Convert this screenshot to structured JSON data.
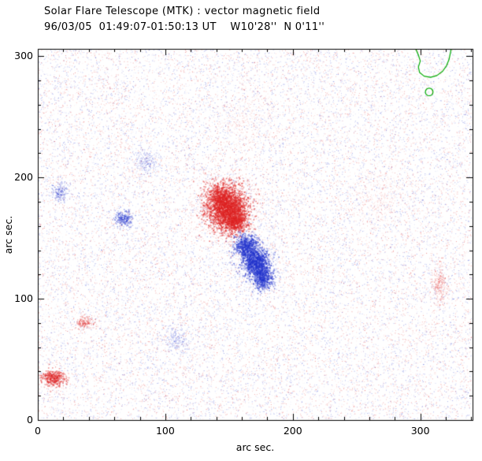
{
  "chart_data": {
    "type": "scatter",
    "title": "Solar Flare Telescope (MTK) : vector magnetic field",
    "subtitle": "96/03/05  01:49:07-01:50:13 UT    W10'28''  N 0'11''",
    "xlabel": "arc sec.",
    "ylabel": "arc sec.",
    "xlim": [
      0,
      341
    ],
    "ylim": [
      0,
      306
    ],
    "xticks": [
      0,
      100,
      200,
      300
    ],
    "yticks": [
      0,
      100,
      200,
      300
    ],
    "minor_tick_interval": 20,
    "grid": false,
    "legend": null,
    "colors": {
      "positive": "#dd2222",
      "negative": "#2233cc",
      "contour": "#00aa00",
      "axis": "#000000",
      "background": "#ffffff"
    },
    "noise": {
      "seed": 42,
      "count": 26000,
      "alpha_min": 0.05,
      "alpha_max": 0.45
    },
    "clusters": [
      {
        "name": "main-positive-core",
        "polarity": "positive",
        "cx": 148,
        "cy": 175,
        "sx": 8,
        "sy": 9,
        "n": 2000,
        "alpha": 0.65,
        "dot": 1.7
      },
      {
        "name": "main-positive-upper",
        "polarity": "positive",
        "cx": 154,
        "cy": 164,
        "sx": 5,
        "sy": 5,
        "n": 600,
        "alpha": 0.6,
        "dot": 1.6
      },
      {
        "name": "main-positive-lower",
        "polarity": "positive",
        "cx": 141,
        "cy": 186,
        "sx": 4.5,
        "sy": 5,
        "n": 400,
        "alpha": 0.55,
        "dot": 1.6
      },
      {
        "name": "main-positive-halo",
        "polarity": "positive",
        "cx": 148,
        "cy": 175,
        "sx": 14,
        "sy": 15,
        "n": 600,
        "alpha": 0.22,
        "dot": 1.4
      },
      {
        "name": "main-negative-upper",
        "polarity": "negative",
        "cx": 163,
        "cy": 144,
        "sx": 4.5,
        "sy": 5,
        "n": 650,
        "alpha": 0.6,
        "dot": 1.6
      },
      {
        "name": "main-negative-core",
        "polarity": "negative",
        "cx": 171,
        "cy": 130,
        "sx": 5,
        "sy": 6,
        "n": 900,
        "alpha": 0.65,
        "dot": 1.7
      },
      {
        "name": "main-negative-lower",
        "polarity": "negative",
        "cx": 176,
        "cy": 117,
        "sx": 4,
        "sy": 4.5,
        "n": 500,
        "alpha": 0.6,
        "dot": 1.6
      },
      {
        "name": "main-negative-halo",
        "polarity": "negative",
        "cx": 170,
        "cy": 131,
        "sx": 10,
        "sy": 13,
        "n": 450,
        "alpha": 0.2,
        "dot": 1.4
      },
      {
        "name": "small-negative-left",
        "polarity": "negative",
        "cx": 67,
        "cy": 167,
        "sx": 3.5,
        "sy": 3.5,
        "n": 240,
        "alpha": 0.45,
        "dot": 1.5
      },
      {
        "name": "small-negative-far-left",
        "polarity": "negative",
        "cx": 17,
        "cy": 189,
        "sx": 3,
        "sy": 4,
        "n": 150,
        "alpha": 0.4,
        "dot": 1.4
      },
      {
        "name": "diffuse-negative-upper-left",
        "polarity": "negative",
        "cx": 85,
        "cy": 213,
        "sx": 5,
        "sy": 5,
        "n": 200,
        "alpha": 0.3,
        "dot": 1.3
      },
      {
        "name": "diffuse-negative-lower-middle",
        "polarity": "negative",
        "cx": 108,
        "cy": 66,
        "sx": 5.5,
        "sy": 6,
        "n": 200,
        "alpha": 0.28,
        "dot": 1.3
      },
      {
        "name": "small-positive-bottom-left",
        "polarity": "positive",
        "cx": 12,
        "cy": 35,
        "sx": 4.5,
        "sy": 3.2,
        "n": 380,
        "alpha": 0.55,
        "dot": 1.6
      },
      {
        "name": "small-positive-left",
        "polarity": "positive",
        "cx": 36,
        "cy": 81,
        "sx": 3.5,
        "sy": 2.5,
        "n": 150,
        "alpha": 0.4,
        "dot": 1.4
      },
      {
        "name": "positive-right-edge",
        "polarity": "positive",
        "cx": 315,
        "cy": 112,
        "sx": 3,
        "sy": 9,
        "n": 240,
        "alpha": 0.3,
        "dot": 1.3
      },
      {
        "name": "diffuse-positive-right",
        "polarity": "positive",
        "cx": 267,
        "cy": 184,
        "sx": 14,
        "sy": 14,
        "n": 320,
        "alpha": 0.13,
        "dot": 1.3
      },
      {
        "name": "diffuse-positive-top-center",
        "polarity": "positive",
        "cx": 162,
        "cy": 248,
        "sx": 16,
        "sy": 12,
        "n": 240,
        "alpha": 0.12,
        "dot": 1.3
      }
    ],
    "contours": [
      {
        "type": "path",
        "points": [
          [
            296,
            307
          ],
          [
            298.5,
            301
          ],
          [
            300,
            296
          ],
          [
            298.5,
            291
          ],
          [
            299.5,
            286.5
          ],
          [
            303,
            283.5
          ],
          [
            308,
            282.5
          ],
          [
            313,
            284
          ],
          [
            317.5,
            287.5
          ],
          [
            320.5,
            292
          ],
          [
            322.5,
            297
          ],
          [
            323.5,
            302
          ],
          [
            324.5,
            307
          ]
        ]
      },
      {
        "type": "circle",
        "cx": 307,
        "cy": 270.5,
        "r": 3
      }
    ]
  }
}
